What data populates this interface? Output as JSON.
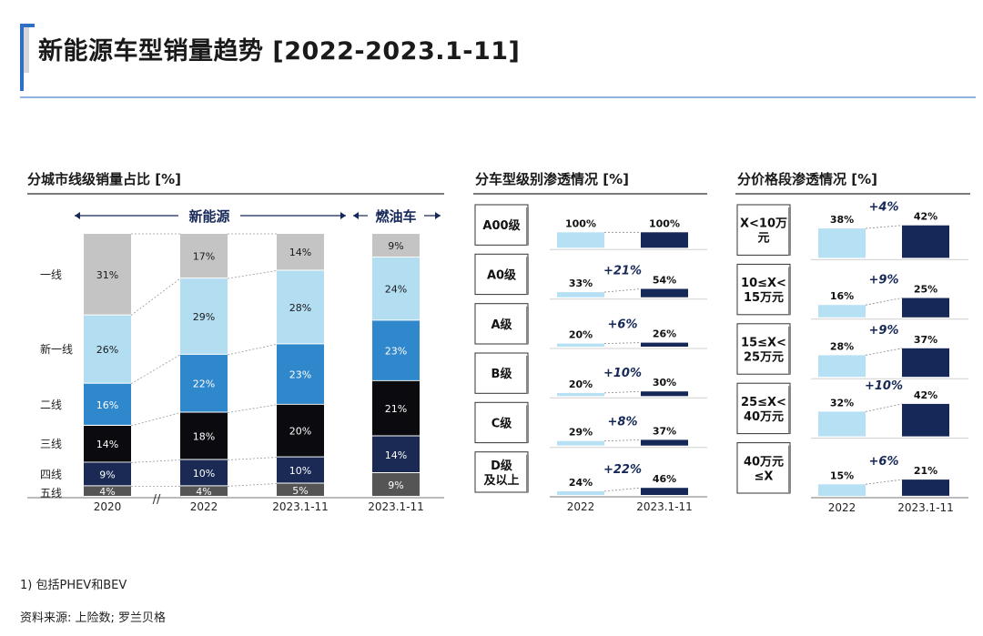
{
  "page": {
    "title": "新能源车型销量趋势 [2022-2023.1-11]",
    "footnote": "1) 包括PHEV和BEV",
    "source": "资料来源: 上险数; 罗兰贝格"
  },
  "colors": {
    "tier1": "#c4c4c4",
    "new_tier1": "#b3def2",
    "tier2": "#2f88cc",
    "tier3": "#0b0b0f",
    "tier4": "#1a2a55",
    "tier5": "#555555",
    "light": "#b6e0f4",
    "dark": "#162858",
    "accent": "#2e6fc4"
  },
  "chart_data": [
    {
      "type": "bar",
      "stacked": true,
      "title": "分城市线级销量占比 [%]",
      "group_labels": {
        "nev": "新能源",
        "ice": "燃油车"
      },
      "categories": [
        "2020",
        "2022",
        "2023.1-11",
        "2023.1-11"
      ],
      "series": [
        {
          "name": "五线",
          "values": [
            4,
            4,
            5,
            9
          ]
        },
        {
          "name": "四线",
          "values": [
            9,
            10,
            10,
            14
          ]
        },
        {
          "name": "三线",
          "values": [
            14,
            18,
            20,
            21
          ]
        },
        {
          "name": "二线",
          "values": [
            16,
            22,
            23,
            23
          ]
        },
        {
          "name": "新一线",
          "values": [
            26,
            29,
            28,
            24
          ]
        },
        {
          "name": "一线",
          "values": [
            31,
            17,
            14,
            9
          ]
        }
      ],
      "value_labels": [
        [
          "4%",
          "4%",
          "5%",
          "9%"
        ],
        [
          "9%",
          "10%",
          "10%",
          "14%"
        ],
        [
          "14%",
          "18%",
          "20%",
          "21%"
        ],
        [
          "16%",
          "22%",
          "23%",
          "23%"
        ],
        [
          "26%",
          "29%",
          "28%",
          "24%"
        ],
        [
          "31%",
          "17%",
          "14%",
          "9%"
        ]
      ],
      "axis_break": "//",
      "ylim": [
        0,
        100
      ]
    },
    {
      "type": "bar",
      "title": "分车型级别渗透情况 [%]",
      "categories": [
        "2022",
        "2023.1-11"
      ],
      "rows": [
        {
          "label": [
            "A00级"
          ],
          "v2022": 100,
          "v2023": 100,
          "l2022": "100%",
          "l2023": "100%",
          "delta": ""
        },
        {
          "label": [
            "A0级"
          ],
          "v2022": 33,
          "v2023": 54,
          "l2022": "33%",
          "l2023": "54%",
          "delta": "+21%"
        },
        {
          "label": [
            "A级"
          ],
          "v2022": 20,
          "v2023": 26,
          "l2022": "20%",
          "l2023": "26%",
          "delta": "+6%"
        },
        {
          "label": [
            "B级"
          ],
          "v2022": 20,
          "v2023": 30,
          "l2022": "20%",
          "l2023": "30%",
          "delta": "+10%"
        },
        {
          "label": [
            "C级"
          ],
          "v2022": 29,
          "v2023": 37,
          "l2022": "29%",
          "l2023": "37%",
          "delta": "+8%"
        },
        {
          "label": [
            "D级",
            "及以上"
          ],
          "v2022": 24,
          "v2023": 46,
          "l2022": "24%",
          "l2023": "46%",
          "delta": "+22%"
        }
      ]
    },
    {
      "type": "bar",
      "title": "分价格段渗透情况 [%]",
      "categories": [
        "2022",
        "2023.1-11"
      ],
      "rows": [
        {
          "label": [
            "X<10万",
            "元"
          ],
          "v2022": 38,
          "v2023": 42,
          "l2022": "38%",
          "l2023": "42%",
          "delta": "+4%"
        },
        {
          "label": [
            "10≤X<",
            "15万元"
          ],
          "v2022": 16,
          "v2023": 25,
          "l2022": "16%",
          "l2023": "25%",
          "delta": "+9%"
        },
        {
          "label": [
            "15≤X<",
            "25万元"
          ],
          "v2022": 28,
          "v2023": 37,
          "l2022": "28%",
          "l2023": "37%",
          "delta": "+9%"
        },
        {
          "label": [
            "25≤X<",
            "40万元"
          ],
          "v2022": 32,
          "v2023": 42,
          "l2022": "32%",
          "l2023": "42%",
          "delta": "+10%"
        },
        {
          "label": [
            "40万元",
            "≤X"
          ],
          "v2022": 15,
          "v2023": 21,
          "l2022": "15%",
          "l2023": "21%",
          "delta": "+6%"
        }
      ]
    }
  ]
}
